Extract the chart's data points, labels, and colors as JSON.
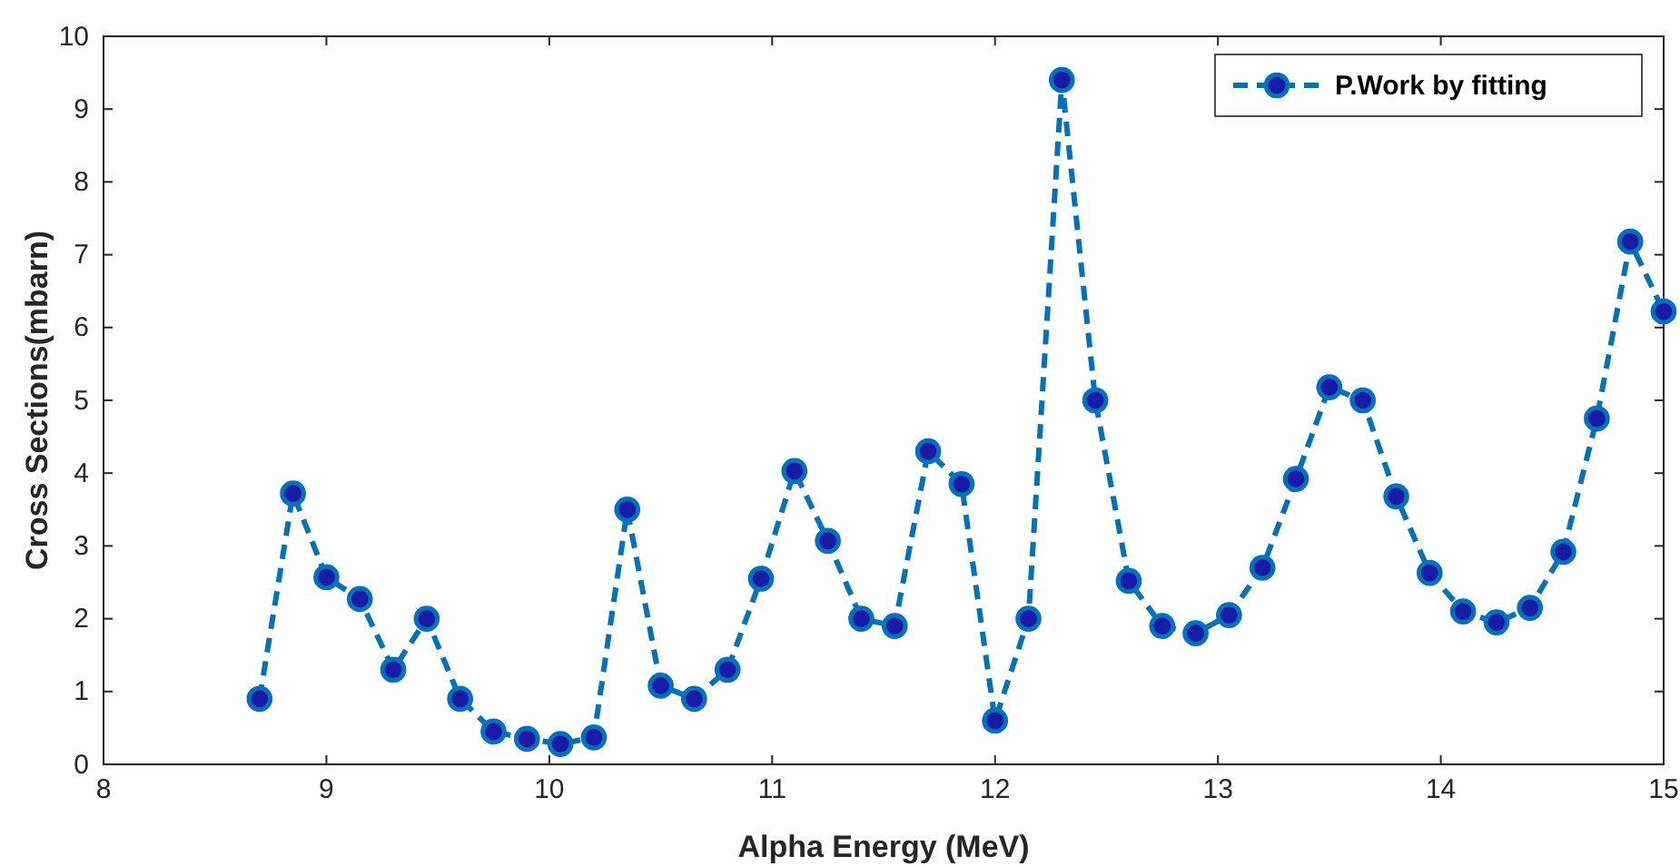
{
  "chart_data": {
    "type": "line",
    "xlabel": "Alpha Energy (MeV)",
    "ylabel": "Cross Sections(mbarn)",
    "xlim": [
      8,
      15
    ],
    "xticks": [
      8,
      9,
      10,
      11,
      12,
      13,
      14,
      15
    ],
    "ylim": [
      0,
      10
    ],
    "yticks": [
      0,
      1,
      2,
      3,
      4,
      5,
      6,
      7,
      8,
      9,
      10
    ],
    "grid": false,
    "legend": "top right",
    "marker": "circle",
    "line_style": "dashed",
    "x": [
      8.7,
      8.85,
      9.0,
      9.15,
      9.3,
      9.45,
      9.6,
      9.75,
      9.9,
      10.05,
      10.2,
      10.35,
      10.5,
      10.65,
      10.8,
      10.95,
      11.1,
      11.25,
      11.4,
      11.55,
      11.7,
      11.85,
      12.0,
      12.15,
      12.3,
      12.45,
      12.6,
      12.75,
      12.9,
      13.05,
      13.2,
      13.35,
      13.5,
      13.65,
      13.8,
      13.95,
      14.1,
      14.25,
      14.4,
      14.55,
      14.7,
      14.85,
      15.0
    ],
    "series": [
      {
        "name": "P.Work by fitting",
        "color": "#0072bd",
        "values": [
          0.9,
          3.72,
          2.57,
          2.27,
          1.3,
          2.0,
          0.9,
          0.45,
          0.35,
          0.28,
          0.37,
          3.5,
          1.08,
          0.9,
          1.3,
          2.55,
          4.03,
          3.07,
          2.0,
          1.9,
          4.3,
          3.85,
          0.6,
          2.0,
          9.4,
          5.0,
          2.52,
          1.9,
          1.8,
          2.05,
          2.7,
          3.92,
          5.18,
          5.0,
          3.68,
          2.63,
          2.1,
          1.95,
          2.15,
          2.92,
          4.75,
          7.18,
          6.22
        ]
      }
    ]
  }
}
